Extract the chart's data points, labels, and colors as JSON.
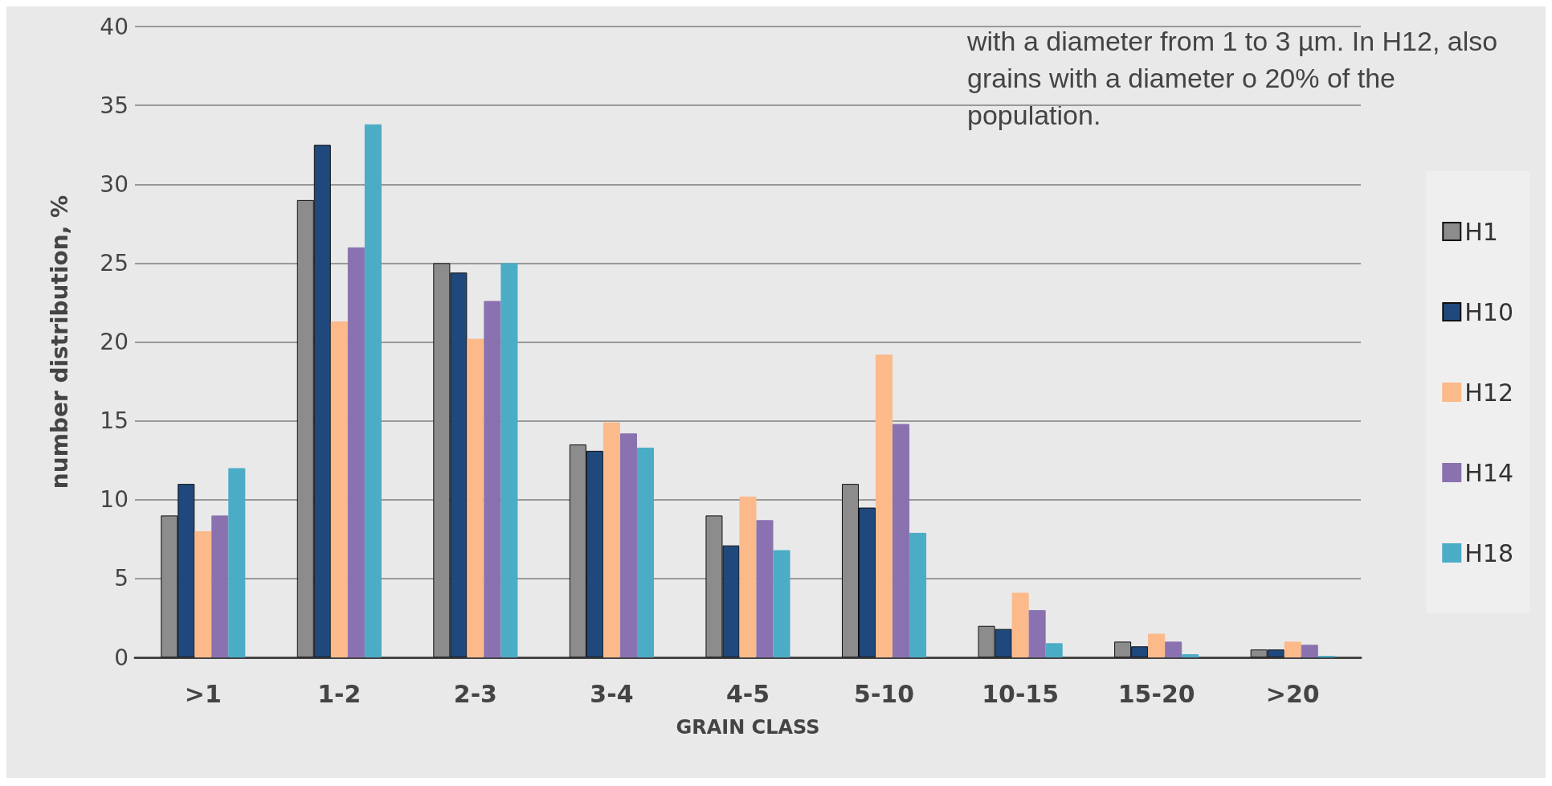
{
  "chart_data": {
    "type": "bar",
    "xlabel": "GRAIN CLASS",
    "ylabel": "number distribution, %",
    "categories": [
      ">1",
      "1-2",
      "2-3",
      "3-4",
      "4-5",
      "5-10",
      "10-15",
      "15-20",
      ">20"
    ],
    "series": [
      {
        "name": "H1",
        "color": "#8c8c8c",
        "values": [
          9,
          29,
          25,
          13.5,
          9,
          11,
          2,
          1,
          0.5
        ]
      },
      {
        "name": "H10",
        "color": "#1f497d",
        "values": [
          11,
          32.5,
          24.4,
          13.1,
          7.1,
          9.5,
          1.8,
          0.7,
          0.5
        ]
      },
      {
        "name": "H12",
        "color": "#fcb98a",
        "values": [
          8,
          21.3,
          20.2,
          14.9,
          10.2,
          19.2,
          4.1,
          1.5,
          1
        ]
      },
      {
        "name": "H14",
        "color": "#8a72b0",
        "values": [
          9,
          26,
          22.6,
          14.2,
          8.7,
          14.8,
          3,
          1,
          0.8
        ]
      },
      {
        "name": "H18",
        "color": "#4bacc6",
        "values": [
          12,
          33.8,
          25,
          13.3,
          6.8,
          7.9,
          0.9,
          0.2,
          0.1
        ]
      }
    ],
    "ylim": [
      0,
      40
    ],
    "yticks": [
      0,
      5,
      10,
      15,
      20,
      25,
      30,
      35,
      40
    ],
    "grid": "y",
    "legend": "right",
    "annotations": [
      "with a diameter from 1 to 3 µm. In H12, also grains with a diameter o 20% of the population."
    ]
  }
}
